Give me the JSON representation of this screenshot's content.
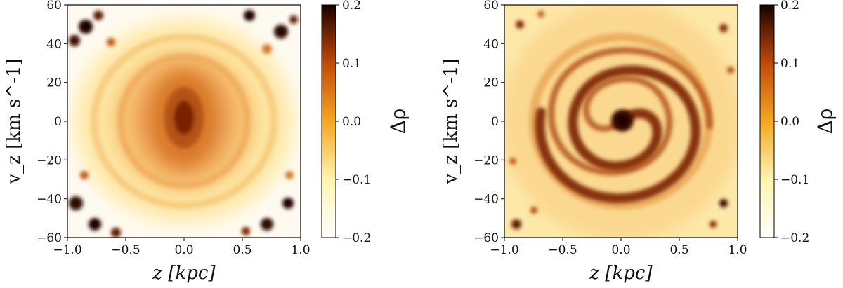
{
  "chart_data": [
    {
      "type": "heatmap",
      "xlabel": "z [kpc]",
      "ylabel": "v_z [km s^-1]",
      "xlim": [
        -1.0,
        1.0
      ],
      "ylim": [
        -60,
        60
      ],
      "x_ticks": [
        -1.0,
        -0.5,
        0.0,
        0.5,
        1.0
      ],
      "x_tick_labels": [
        "−1.0",
        "−0.5",
        "0.0",
        "0.5",
        "1.0"
      ],
      "y_ticks": [
        -60,
        -40,
        -20,
        0,
        20,
        40,
        60
      ],
      "y_tick_labels": [
        "−60",
        "−40",
        "−20",
        "0",
        "20",
        "40",
        "60"
      ],
      "colorbar": {
        "label": "Δρ",
        "range": [
          -0.2,
          0.2
        ],
        "ticks": [
          -0.2,
          -0.1,
          0.0,
          0.1,
          0.2
        ],
        "tick_labels": [
          "−0.2",
          "−0.1",
          "0.0",
          "0.1",
          "0.2"
        ],
        "colormap": "afmhot_r"
      },
      "pattern": "diffuse central overdensity, faint outer rings",
      "grid": false
    },
    {
      "type": "heatmap",
      "xlabel": "z [kpc]",
      "ylabel": "v_z [km s^-1]",
      "xlim": [
        -1.0,
        1.0
      ],
      "ylim": [
        -60,
        60
      ],
      "x_ticks": [
        -1.0,
        -0.5,
        0.0,
        0.5,
        1.0
      ],
      "x_tick_labels": [
        "−1.0",
        "−0.5",
        "0.0",
        "0.5",
        "1.0"
      ],
      "y_ticks": [
        -60,
        -40,
        -20,
        0,
        20,
        40,
        60
      ],
      "y_tick_labels": [
        "−60",
        "−40",
        "−20",
        "0",
        "20",
        "40",
        "60"
      ],
      "colorbar": {
        "label": "Δρ",
        "range": [
          -0.2,
          0.2
        ],
        "ticks": [
          -0.2,
          -0.1,
          0.0,
          0.1,
          0.2
        ],
        "tick_labels": [
          "−0.2",
          "−0.1",
          "0.0",
          "0.1",
          "0.2"
        ],
        "colormap": "afmhot_r"
      },
      "pattern": "phase-space spiral with strong central overdensity",
      "grid": false
    }
  ]
}
